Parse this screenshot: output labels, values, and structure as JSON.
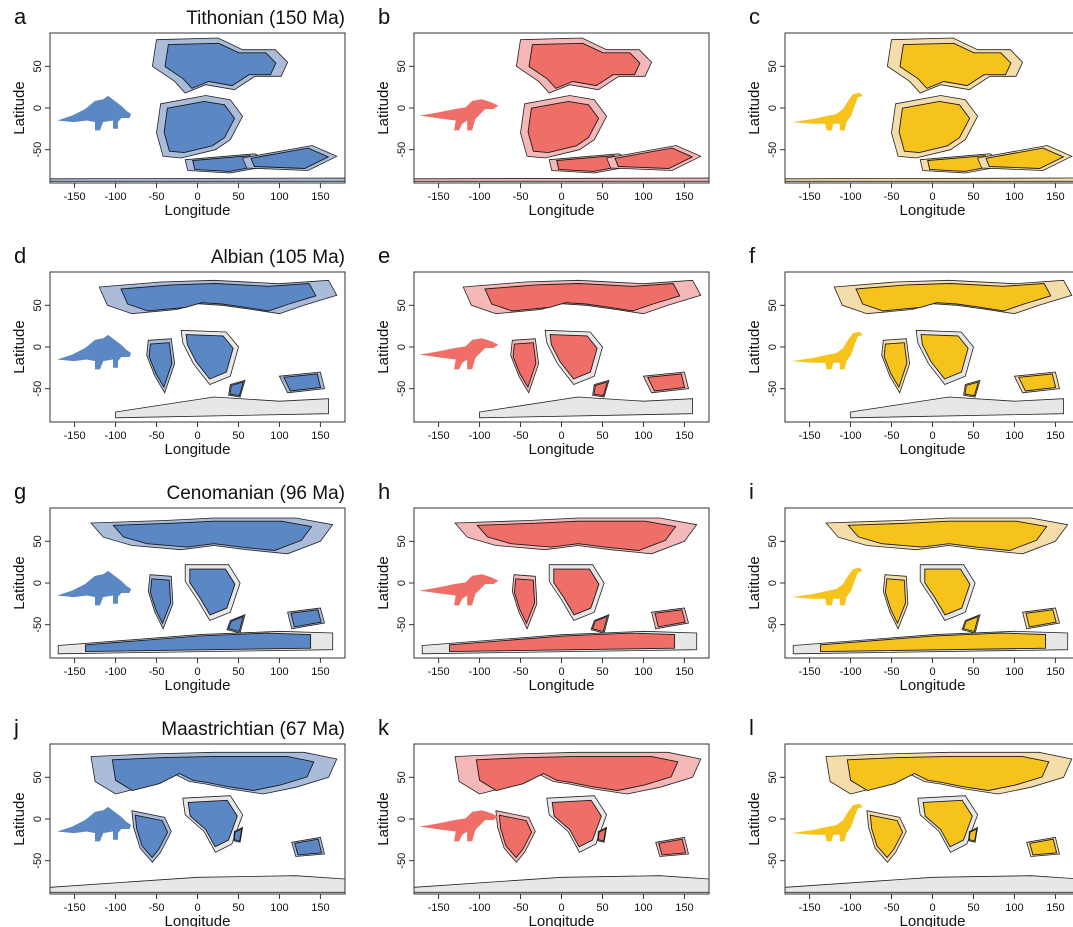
{
  "stage_titles": [
    "Tithonian (150 Ma)",
    "Albian (105 Ma)",
    "Cenomanian (96 Ma)",
    "Maastrichtian (67 Ma)"
  ],
  "panel_letters": [
    "a",
    "b",
    "c",
    "d",
    "e",
    "f",
    "g",
    "h",
    "i",
    "j",
    "k",
    "l"
  ],
  "axes": {
    "xlabel": "Longitude",
    "ylabel": "Latitude",
    "x_ticks": [
      -150,
      -100,
      -50,
      0,
      50,
      100,
      150
    ],
    "y_ticks": [
      -50,
      0,
      50
    ],
    "xlim": [
      -180,
      180
    ],
    "ylim": [
      -90,
      90
    ]
  },
  "groups": [
    {
      "silhouette": "ornithischian-icon",
      "land_color": "#5b87c5",
      "range_color": "#aabcda"
    },
    {
      "silhouette": "theropod-icon",
      "land_color": "#ef6f68",
      "range_color": "#f3b8b7"
    },
    {
      "silhouette": "sauropod-icon",
      "land_color": "#f6c21c",
      "range_color": "#f4dcab"
    }
  ],
  "unsuitable_color": "#e7e7e7"
}
